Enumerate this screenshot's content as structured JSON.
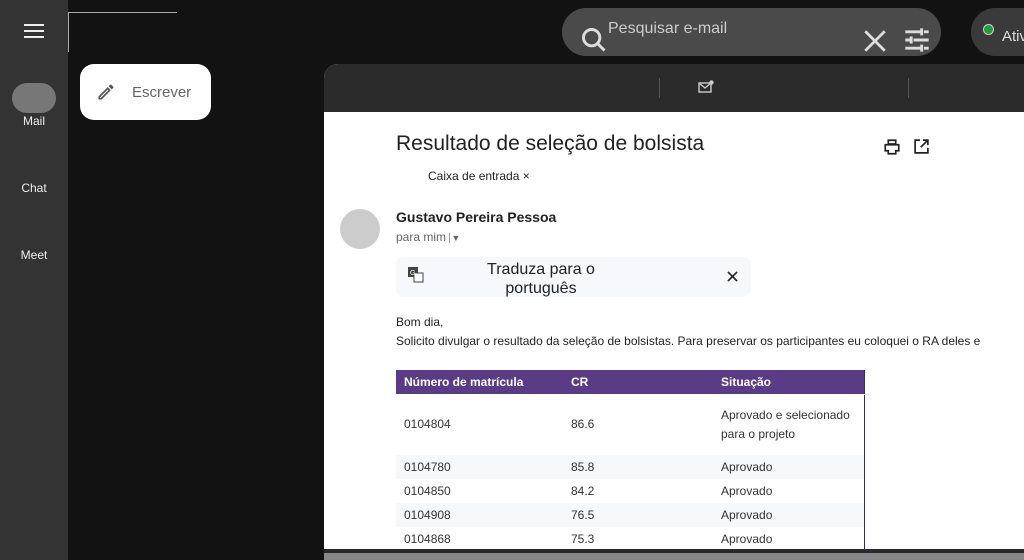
{
  "rail": {
    "items": [
      {
        "label": "Mail"
      },
      {
        "label": "Chat"
      },
      {
        "label": "Meet"
      }
    ]
  },
  "compose": {
    "label": "Escrever"
  },
  "search": {
    "placeholder": "Pesquisar e-mail"
  },
  "status": {
    "label": "Ativ",
    "color": "#1e9e3e"
  },
  "email": {
    "subject": "Resultado de seleção de bolsista",
    "label": "Caixa de entrada",
    "sender": "Gustavo Pereira Pessoa",
    "to": "para mim",
    "translate": "Traduza para o português",
    "greeting": "Bom dia,",
    "body": "Solicito divulgar o resultado da seleção de bolsistas. Para preservar os participantes eu coloquei o RA deles e",
    "table": {
      "headers": [
        "Número de matrícula",
        "CR",
        "Situação"
      ],
      "header_color": "#5a3b86",
      "rows": [
        [
          "0104804",
          "86.6",
          "Aprovado e selecionado para o projeto"
        ],
        [
          "0104780",
          "85.8",
          "Aprovado"
        ],
        [
          "0104850",
          "84.2",
          "Aprovado"
        ],
        [
          "0104908",
          "76.5",
          "Aprovado"
        ],
        [
          "0104868",
          "75.3",
          "Aprovado"
        ]
      ]
    }
  }
}
